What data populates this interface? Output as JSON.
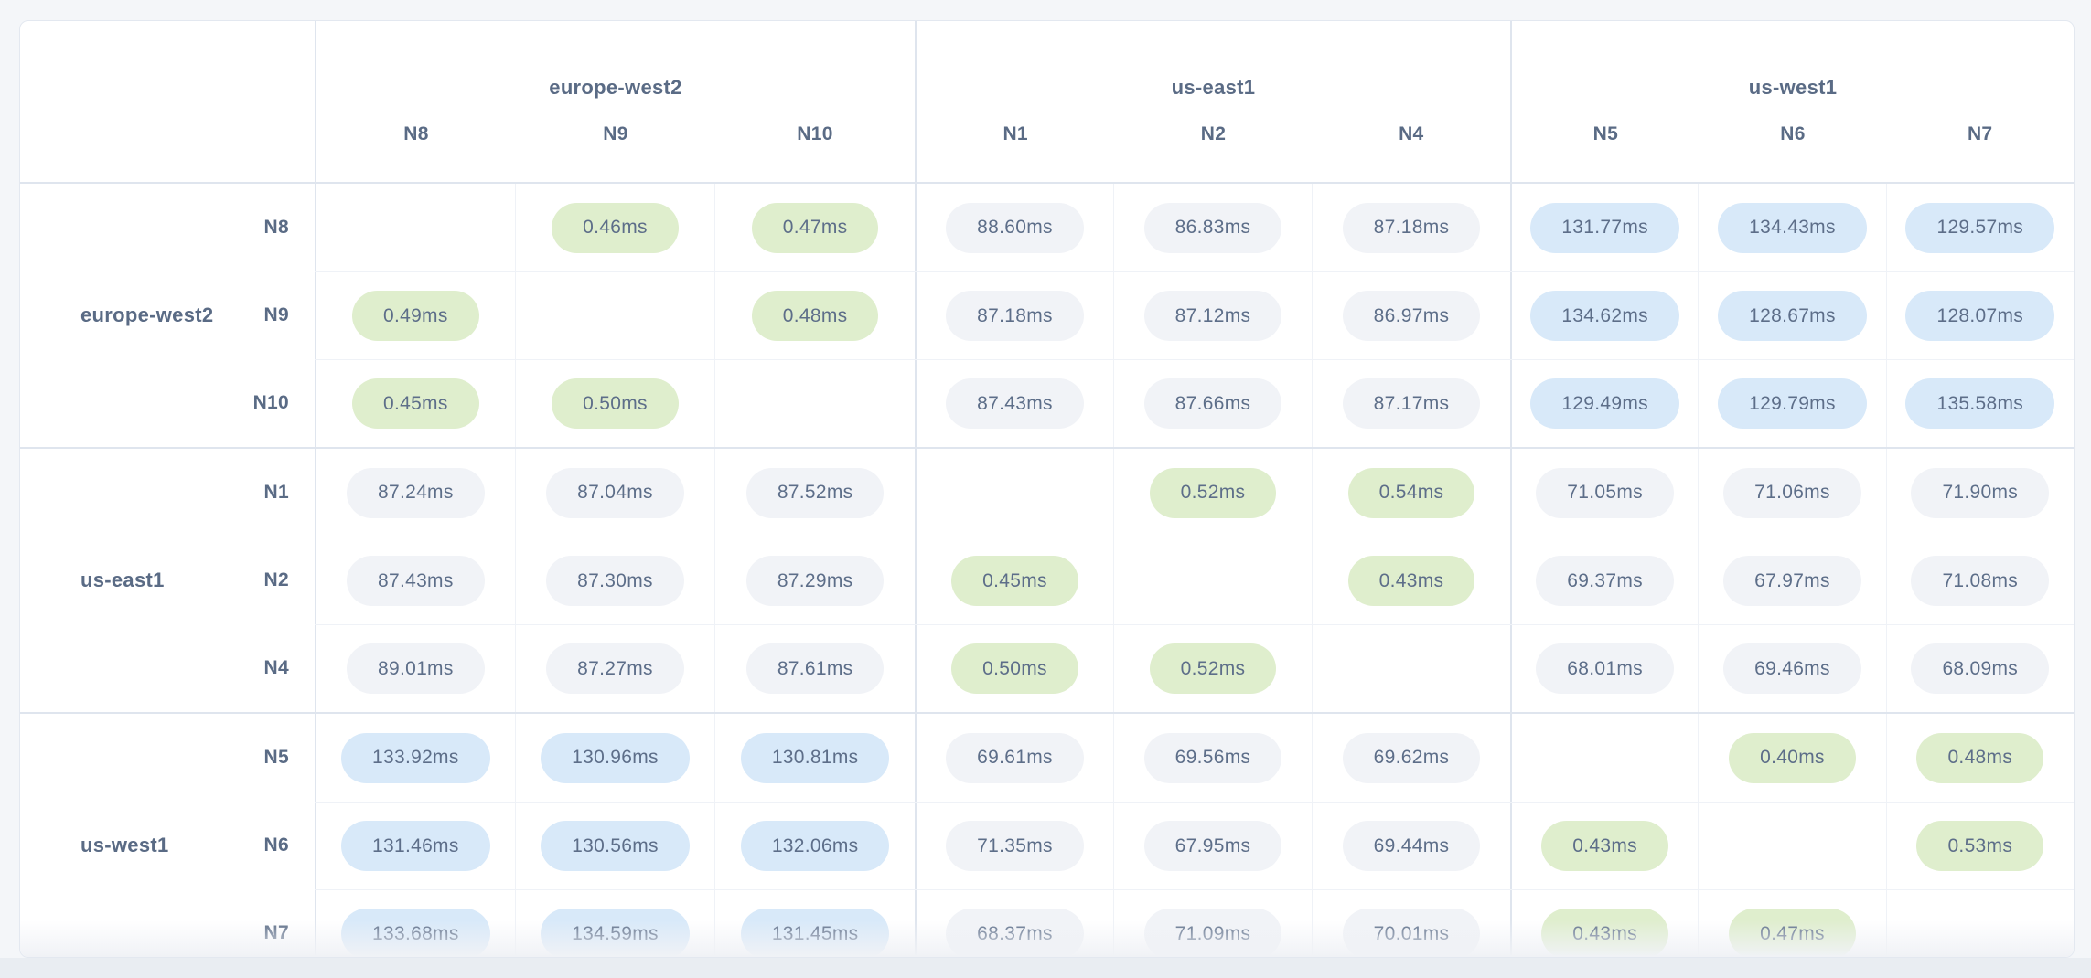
{
  "palette": {
    "page_bg": "#f4f6f9",
    "bottom_strip": "#e9edf2",
    "card_bg": "#ffffff",
    "card_border": "#e3e8f0",
    "group_line": "#dfe5ee",
    "cell_line": "#eff2f7",
    "text": "#5a6b85",
    "pill_intra_bg": "#dfeecd",
    "pill_mid_bg": "#f1f3f7",
    "pill_far_bg": "#d8e9f9"
  },
  "table": {
    "unit": "ms",
    "col_groups": [
      {
        "label": "europe-west2",
        "nodes": [
          "N8",
          "N9",
          "N10"
        ]
      },
      {
        "label": "us-east1",
        "nodes": [
          "N1",
          "N2",
          "N4"
        ]
      },
      {
        "label": "us-west1",
        "nodes": [
          "N5",
          "N6",
          "N7"
        ]
      }
    ],
    "row_groups": [
      {
        "label": "europe-west2",
        "rows": [
          {
            "node": "N8",
            "values": [
              "",
              "0.46ms",
              "0.47ms",
              "88.60ms",
              "86.83ms",
              "87.18ms",
              "131.77ms",
              "134.43ms",
              "129.57ms"
            ]
          },
          {
            "node": "N9",
            "values": [
              "0.49ms",
              "",
              "0.48ms",
              "87.18ms",
              "87.12ms",
              "86.97ms",
              "134.62ms",
              "128.67ms",
              "128.07ms"
            ]
          },
          {
            "node": "N10",
            "values": [
              "0.45ms",
              "0.50ms",
              "",
              "87.43ms",
              "87.66ms",
              "87.17ms",
              "129.49ms",
              "129.79ms",
              "135.58ms"
            ]
          }
        ]
      },
      {
        "label": "us-east1",
        "rows": [
          {
            "node": "N1",
            "values": [
              "87.24ms",
              "87.04ms",
              "87.52ms",
              "",
              "0.52ms",
              "0.54ms",
              "71.05ms",
              "71.06ms",
              "71.90ms"
            ]
          },
          {
            "node": "N2",
            "values": [
              "87.43ms",
              "87.30ms",
              "87.29ms",
              "0.45ms",
              "",
              "0.43ms",
              "69.37ms",
              "67.97ms",
              "71.08ms"
            ]
          },
          {
            "node": "N4",
            "values": [
              "89.01ms",
              "87.27ms",
              "87.61ms",
              "0.50ms",
              "0.52ms",
              "",
              "68.01ms",
              "69.46ms",
              "68.09ms"
            ]
          }
        ]
      },
      {
        "label": "us-west1",
        "rows": [
          {
            "node": "N5",
            "values": [
              "133.92ms",
              "130.96ms",
              "130.81ms",
              "69.61ms",
              "69.56ms",
              "69.62ms",
              "",
              "0.40ms",
              "0.48ms"
            ]
          },
          {
            "node": "N6",
            "values": [
              "131.46ms",
              "130.56ms",
              "132.06ms",
              "71.35ms",
              "67.95ms",
              "69.44ms",
              "0.43ms",
              "",
              "0.53ms"
            ]
          },
          {
            "node": "N7",
            "values": [
              "133.68ms",
              "134.59ms",
              "131.45ms",
              "68.37ms",
              "71.09ms",
              "70.01ms",
              "0.43ms",
              "0.47ms",
              ""
            ]
          }
        ]
      }
    ],
    "thresholds": {
      "intra_region_max_ms": 1,
      "mid_max_ms": 110
    }
  }
}
